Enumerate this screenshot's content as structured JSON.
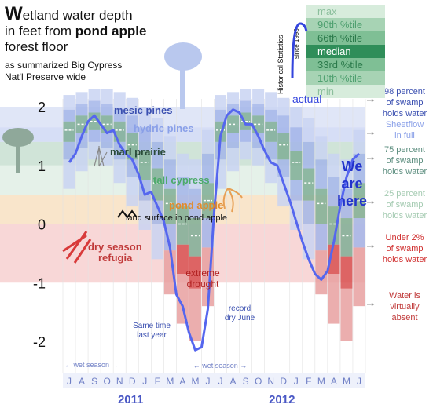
{
  "title": {
    "line1_prefix": "W",
    "line1_rest": "etland water depth",
    "line2_prefix": "in feet from ",
    "line2_bold": "pond apple",
    "line3": "forest floor",
    "subtitle_line1": "as summarized Big Cypress",
    "subtitle_line2": "Nat'l Preserve wide"
  },
  "legend": {
    "vertical_title": "Historical Statistics",
    "since": "since 1993",
    "items": [
      "max",
      "90th %tile",
      "66th %tile",
      "median",
      "33rd %tile",
      "10th %tile",
      "min"
    ],
    "actual_label": "actual"
  },
  "band_labels": {
    "mesic_pines": "mesic pines",
    "hydric_pines": "hydric pines",
    "marl_prairie": "marl prairie",
    "tall_cypress": "tall cypress",
    "pond_apple": "pond apple",
    "land_surface": "land surface in pond apple",
    "dry_season_refugia_1": "dry season",
    "dry_season_refugia_2": "refugia"
  },
  "right_notes": {
    "n98": [
      "98 percent",
      "of swamp",
      "holds water"
    ],
    "sheetflow": [
      "Sheetflow",
      "in full"
    ],
    "n75": [
      "75 percent",
      "of swamp",
      "holds water"
    ],
    "n25": [
      "25 percent",
      "of swamp",
      "holds water"
    ],
    "n2": [
      "Under 2%",
      "of swamp",
      "holds water"
    ],
    "absent": [
      "Water is",
      "virtually",
      "absent"
    ]
  },
  "annotations": {
    "we_are_here": [
      "We",
      "are",
      "here"
    ],
    "extreme_drought": [
      "extreme",
      "drought"
    ],
    "same_time": [
      "Same time",
      "last year"
    ],
    "record_dry": [
      "record",
      "dry June"
    ],
    "wet_season_1": "wet season",
    "wet_season_2": "wet season"
  },
  "colors": {
    "actual_line": "#5566ee",
    "bar_blue": "#a9b9e8",
    "bar_green": "#9ccfb5",
    "bar_red": "#e05a5a",
    "median": "#ffffff",
    "grid": "#cccccc"
  },
  "chart_data": {
    "type": "area",
    "ylabel": "",
    "ylim": [
      -2.4,
      2.4
    ],
    "y_ticks": [
      2,
      1,
      0,
      -1,
      -2
    ],
    "x_months": [
      "J",
      "A",
      "S",
      "O",
      "N",
      "D",
      "J",
      "F",
      "M",
      "A",
      "M",
      "J",
      "J",
      "A",
      "S",
      "O",
      "N",
      "D",
      "J",
      "F",
      "M",
      "A",
      "M",
      "J"
    ],
    "year_labels": [
      {
        "label": "2011",
        "start_index": 6
      },
      {
        "label": "2012",
        "start_index": 18
      }
    ],
    "bands": [
      {
        "name": "mesic pines",
        "low": 1.65,
        "high": 2.0
      },
      {
        "name": "hydric pines",
        "low": 1.4,
        "high": 1.65
      },
      {
        "name": "marl prairie",
        "low": 1.0,
        "high": 1.4
      },
      {
        "name": "tall cypress",
        "low": 0.5,
        "high": 1.0
      },
      {
        "name": "pond apple",
        "low": 0.0,
        "high": 0.5
      },
      {
        "name": "dry season refugia",
        "low": -1.0,
        "high": 0.0
      }
    ],
    "historical": {
      "x": [
        0,
        1,
        2,
        3,
        4,
        5,
        6,
        7,
        8,
        9,
        10,
        11,
        12,
        13,
        14,
        15,
        16,
        17,
        18,
        19,
        20,
        21,
        22,
        23
      ],
      "max": [
        2.2,
        2.25,
        2.3,
        2.3,
        2.25,
        2.15,
        2.0,
        1.8,
        1.5,
        1.2,
        1.1,
        1.6,
        2.2,
        2.25,
        2.3,
        2.3,
        2.25,
        2.15,
        2.0,
        1.8,
        1.5,
        1.2,
        1.1,
        1.6
      ],
      "p90": [
        1.95,
        2.05,
        2.1,
        2.05,
        1.95,
        1.85,
        1.65,
        1.4,
        1.1,
        0.8,
        0.6,
        1.2,
        1.95,
        2.05,
        2.1,
        2.05,
        1.95,
        1.85,
        1.65,
        1.4,
        1.1,
        0.8,
        0.6,
        1.2
      ],
      "p66": [
        1.75,
        1.85,
        1.9,
        1.85,
        1.75,
        1.55,
        1.25,
        0.95,
        0.6,
        0.3,
        0.1,
        0.7,
        1.75,
        1.85,
        1.9,
        1.85,
        1.75,
        1.55,
        1.25,
        0.95,
        0.6,
        0.3,
        0.1,
        0.7
      ],
      "median": [
        1.6,
        1.7,
        1.75,
        1.7,
        1.6,
        1.35,
        1.05,
        0.7,
        0.35,
        0.0,
        -0.2,
        0.4,
        1.6,
        1.7,
        1.75,
        1.7,
        1.6,
        1.35,
        1.05,
        0.7,
        0.35,
        0.0,
        -0.2,
        0.4
      ],
      "p33": [
        1.4,
        1.55,
        1.6,
        1.55,
        1.4,
        1.1,
        0.75,
        0.4,
        0.0,
        -0.35,
        -0.55,
        0.1,
        1.4,
        1.55,
        1.6,
        1.55,
        1.4,
        1.1,
        0.75,
        0.4,
        0.0,
        -0.35,
        -0.55,
        0.1
      ],
      "p10": [
        1.1,
        1.3,
        1.4,
        1.3,
        1.1,
        0.8,
        0.4,
        0.0,
        -0.45,
        -0.85,
        -1.1,
        -0.4,
        1.1,
        1.3,
        1.4,
        1.3,
        1.1,
        0.8,
        0.4,
        0.0,
        -0.45,
        -0.85,
        -1.1,
        -0.4
      ],
      "min": [
        0.6,
        0.9,
        1.1,
        1.0,
        0.7,
        0.3,
        -0.1,
        -0.6,
        -1.2,
        -1.7,
        -2.0,
        -1.4,
        0.6,
        0.9,
        1.1,
        1.0,
        0.7,
        0.3,
        -0.1,
        -0.6,
        -1.2,
        -1.7,
        -2.0,
        -1.4
      ]
    },
    "actual": {
      "x": [
        0,
        0.5,
        1,
        1.5,
        2,
        2.5,
        3,
        3.5,
        4,
        4.5,
        5,
        5.5,
        6,
        6.5,
        7,
        7.5,
        8,
        8.5,
        9,
        9.5,
        10,
        10.5,
        11,
        11.5,
        12,
        12.5,
        13,
        13.5,
        14,
        14.5,
        15,
        15.5,
        16,
        16.5,
        17,
        17.5,
        18,
        18.5,
        19,
        19.5,
        20,
        20.5,
        21,
        21.5,
        22,
        22.5,
        23
      ],
      "y": [
        1.05,
        1.2,
        1.5,
        1.75,
        1.85,
        1.7,
        1.55,
        1.6,
        1.35,
        1.2,
        1.1,
        0.85,
        0.5,
        0.55,
        0.3,
        0.05,
        -0.4,
        -1.2,
        -1.4,
        -1.85,
        -2.15,
        -2.1,
        -1.45,
        0.2,
        1.5,
        1.85,
        1.95,
        1.9,
        1.7,
        1.7,
        1.5,
        1.25,
        1.05,
        1.0,
        0.7,
        0.4,
        0.05,
        -0.3,
        -0.6,
        -0.85,
        -0.95,
        -0.8,
        -0.3,
        0.3,
        0.8,
        1.1,
        1.2
      ]
    }
  }
}
